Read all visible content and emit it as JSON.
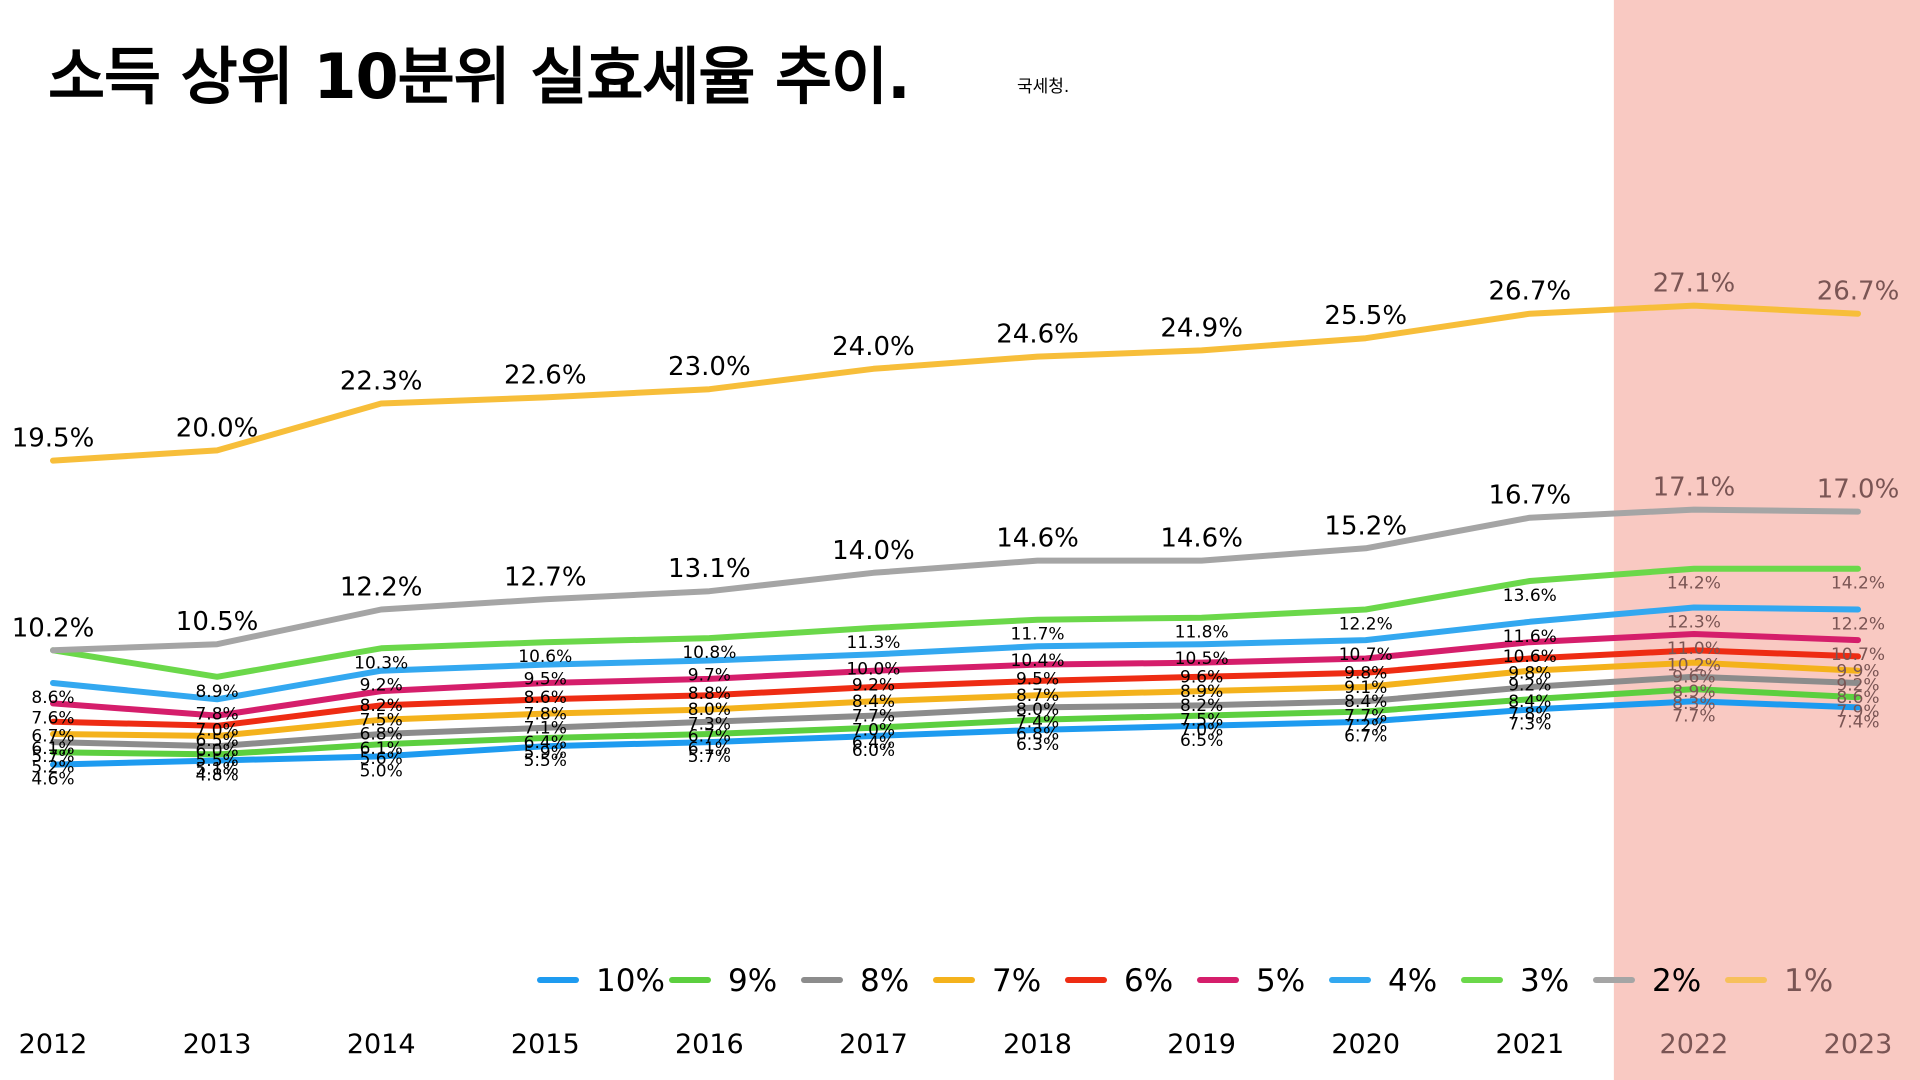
{
  "title": "소득 상위 10분위 실효세율 추이.",
  "source": "국세청.",
  "chart_data": {
    "type": "line",
    "categories": [
      "2012",
      "2013",
      "2014",
      "2015",
      "2016",
      "2017",
      "2018",
      "2019",
      "2020",
      "2021",
      "2022",
      "2023"
    ],
    "highlight": {
      "from": "2022",
      "to": "2023",
      "color": "#f9c9c2"
    },
    "legend_position": "bottom",
    "series": [
      {
        "name": "10%",
        "color": "#1e9bf0",
        "values": [
          4.6,
          4.8,
          5.0,
          5.5,
          5.7,
          6.0,
          6.3,
          6.5,
          6.7,
          7.3,
          7.7,
          7.4
        ]
      },
      {
        "name": "9%",
        "color": "#5ccf3f",
        "values": [
          5.2,
          5.1,
          5.6,
          5.9,
          6.1,
          6.4,
          6.8,
          7.0,
          7.2,
          7.8,
          8.3,
          7.9
        ]
      },
      {
        "name": "8%",
        "color": "#8c8c8c",
        "values": [
          5.7,
          5.5,
          6.1,
          6.4,
          6.7,
          7.0,
          7.4,
          7.5,
          7.7,
          8.4,
          8.9,
          8.6
        ]
      },
      {
        "name": "7%",
        "color": "#f4b21c",
        "values": [
          6.1,
          6.0,
          6.8,
          7.1,
          7.3,
          7.7,
          8.0,
          8.2,
          8.4,
          9.2,
          9.6,
          9.2
        ]
      },
      {
        "name": "6%",
        "color": "#ee2c13",
        "values": [
          6.7,
          6.5,
          7.5,
          7.8,
          8.0,
          8.4,
          8.7,
          8.9,
          9.1,
          9.8,
          10.2,
          9.9
        ]
      },
      {
        "name": "5%",
        "color": "#d51e6b",
        "values": [
          7.6,
          7.0,
          8.2,
          8.6,
          8.8,
          9.2,
          9.5,
          9.6,
          9.8,
          10.6,
          11.0,
          10.7
        ]
      },
      {
        "name": "4%",
        "color": "#33a8f0",
        "values": [
          8.6,
          7.8,
          9.2,
          9.5,
          9.7,
          10.0,
          10.4,
          10.5,
          10.7,
          11.6,
          12.3,
          12.2
        ]
      },
      {
        "name": "3%",
        "color": "#6bd84a",
        "values": [
          10.2,
          8.9,
          10.3,
          10.6,
          10.8,
          11.3,
          11.7,
          11.8,
          12.2,
          13.6,
          14.2,
          14.2
        ]
      },
      {
        "name": "2%",
        "color": "#a5a5a5",
        "values": [
          10.2,
          10.5,
          12.2,
          12.7,
          13.1,
          14.0,
          14.6,
          14.6,
          15.2,
          16.7,
          17.1,
          17.0
        ]
      },
      {
        "name": "1%",
        "color": "#f7be3a",
        "values": [
          19.5,
          20.0,
          22.3,
          22.6,
          23.0,
          24.0,
          24.6,
          24.9,
          25.5,
          26.7,
          27.1,
          26.7
        ]
      }
    ],
    "data_labels": [
      [
        "4.6%",
        "4.8%",
        "5.0%",
        "5.5%",
        "5.7%",
        "6.0%",
        "6.3%",
        "6.5%",
        "6.7%",
        "7.3%",
        "7.7%",
        "7.4%"
      ],
      [
        "5.2%",
        "5.1%",
        "5.6%",
        "5.9%",
        "6.1%",
        "6.4%",
        "6.8%",
        "7.0%",
        "7.2%",
        "7.8%",
        "8.3%",
        "7.9%"
      ],
      [
        "5.7%",
        "5.5%",
        "6.1%",
        "6.4%",
        "6.7%",
        "7.0%",
        "7.4%",
        "7.5%",
        "7.7%",
        "8.4%",
        "8.9%",
        "8.6%"
      ],
      [
        "6.1%",
        "6.0%",
        "6.8%",
        "7.1%",
        "7.3%",
        "7.7%",
        "8.0%",
        "8.2%",
        "8.4%",
        "9.2%",
        "9.6%",
        "9.2%"
      ],
      [
        "6.7%",
        "6.5%",
        "7.5%",
        "7.8%",
        "8.0%",
        "8.4%",
        "8.7%",
        "8.9%",
        "9.1%",
        "9.8%",
        "10.2%",
        "9.9%"
      ],
      [
        "7.6%",
        "7.0%",
        "8.2%",
        "8.6%",
        "8.8%",
        "9.2%",
        "9.5%",
        "9.6%",
        "9.8%",
        "10.6%",
        "11.0%",
        "10.7%"
      ],
      [
        "8.6%",
        "7.8%",
        "9.2%",
        "9.5%",
        "9.7%",
        "10.0%",
        "10.4%",
        "10.5%",
        "10.7%",
        "11.6%",
        "12.3%",
        "12.2%"
      ],
      [
        "",
        "8.9%",
        "10.3%",
        "10.6%",
        "10.8%",
        "11.3%",
        "11.7%",
        "11.8%",
        "12.2%",
        "13.6%",
        "14.2%",
        "14.2%"
      ],
      [
        "10.2%",
        "10.5%",
        "12.2%",
        "12.7%",
        "13.1%",
        "14.0%",
        "14.6%",
        "14.6%",
        "15.2%",
        "16.7%",
        "17.1%",
        "17.0%"
      ],
      [
        "19.5%",
        "20.0%",
        "22.3%",
        "22.6%",
        "23.0%",
        "24.0%",
        "24.6%",
        "24.9%",
        "25.5%",
        "26.7%",
        "27.1%",
        "26.7%"
      ]
    ],
    "legend_order": [
      "10%",
      "9%",
      "8%",
      "7%",
      "6%",
      "5%",
      "4%",
      "3%",
      "2%",
      "1%"
    ]
  }
}
